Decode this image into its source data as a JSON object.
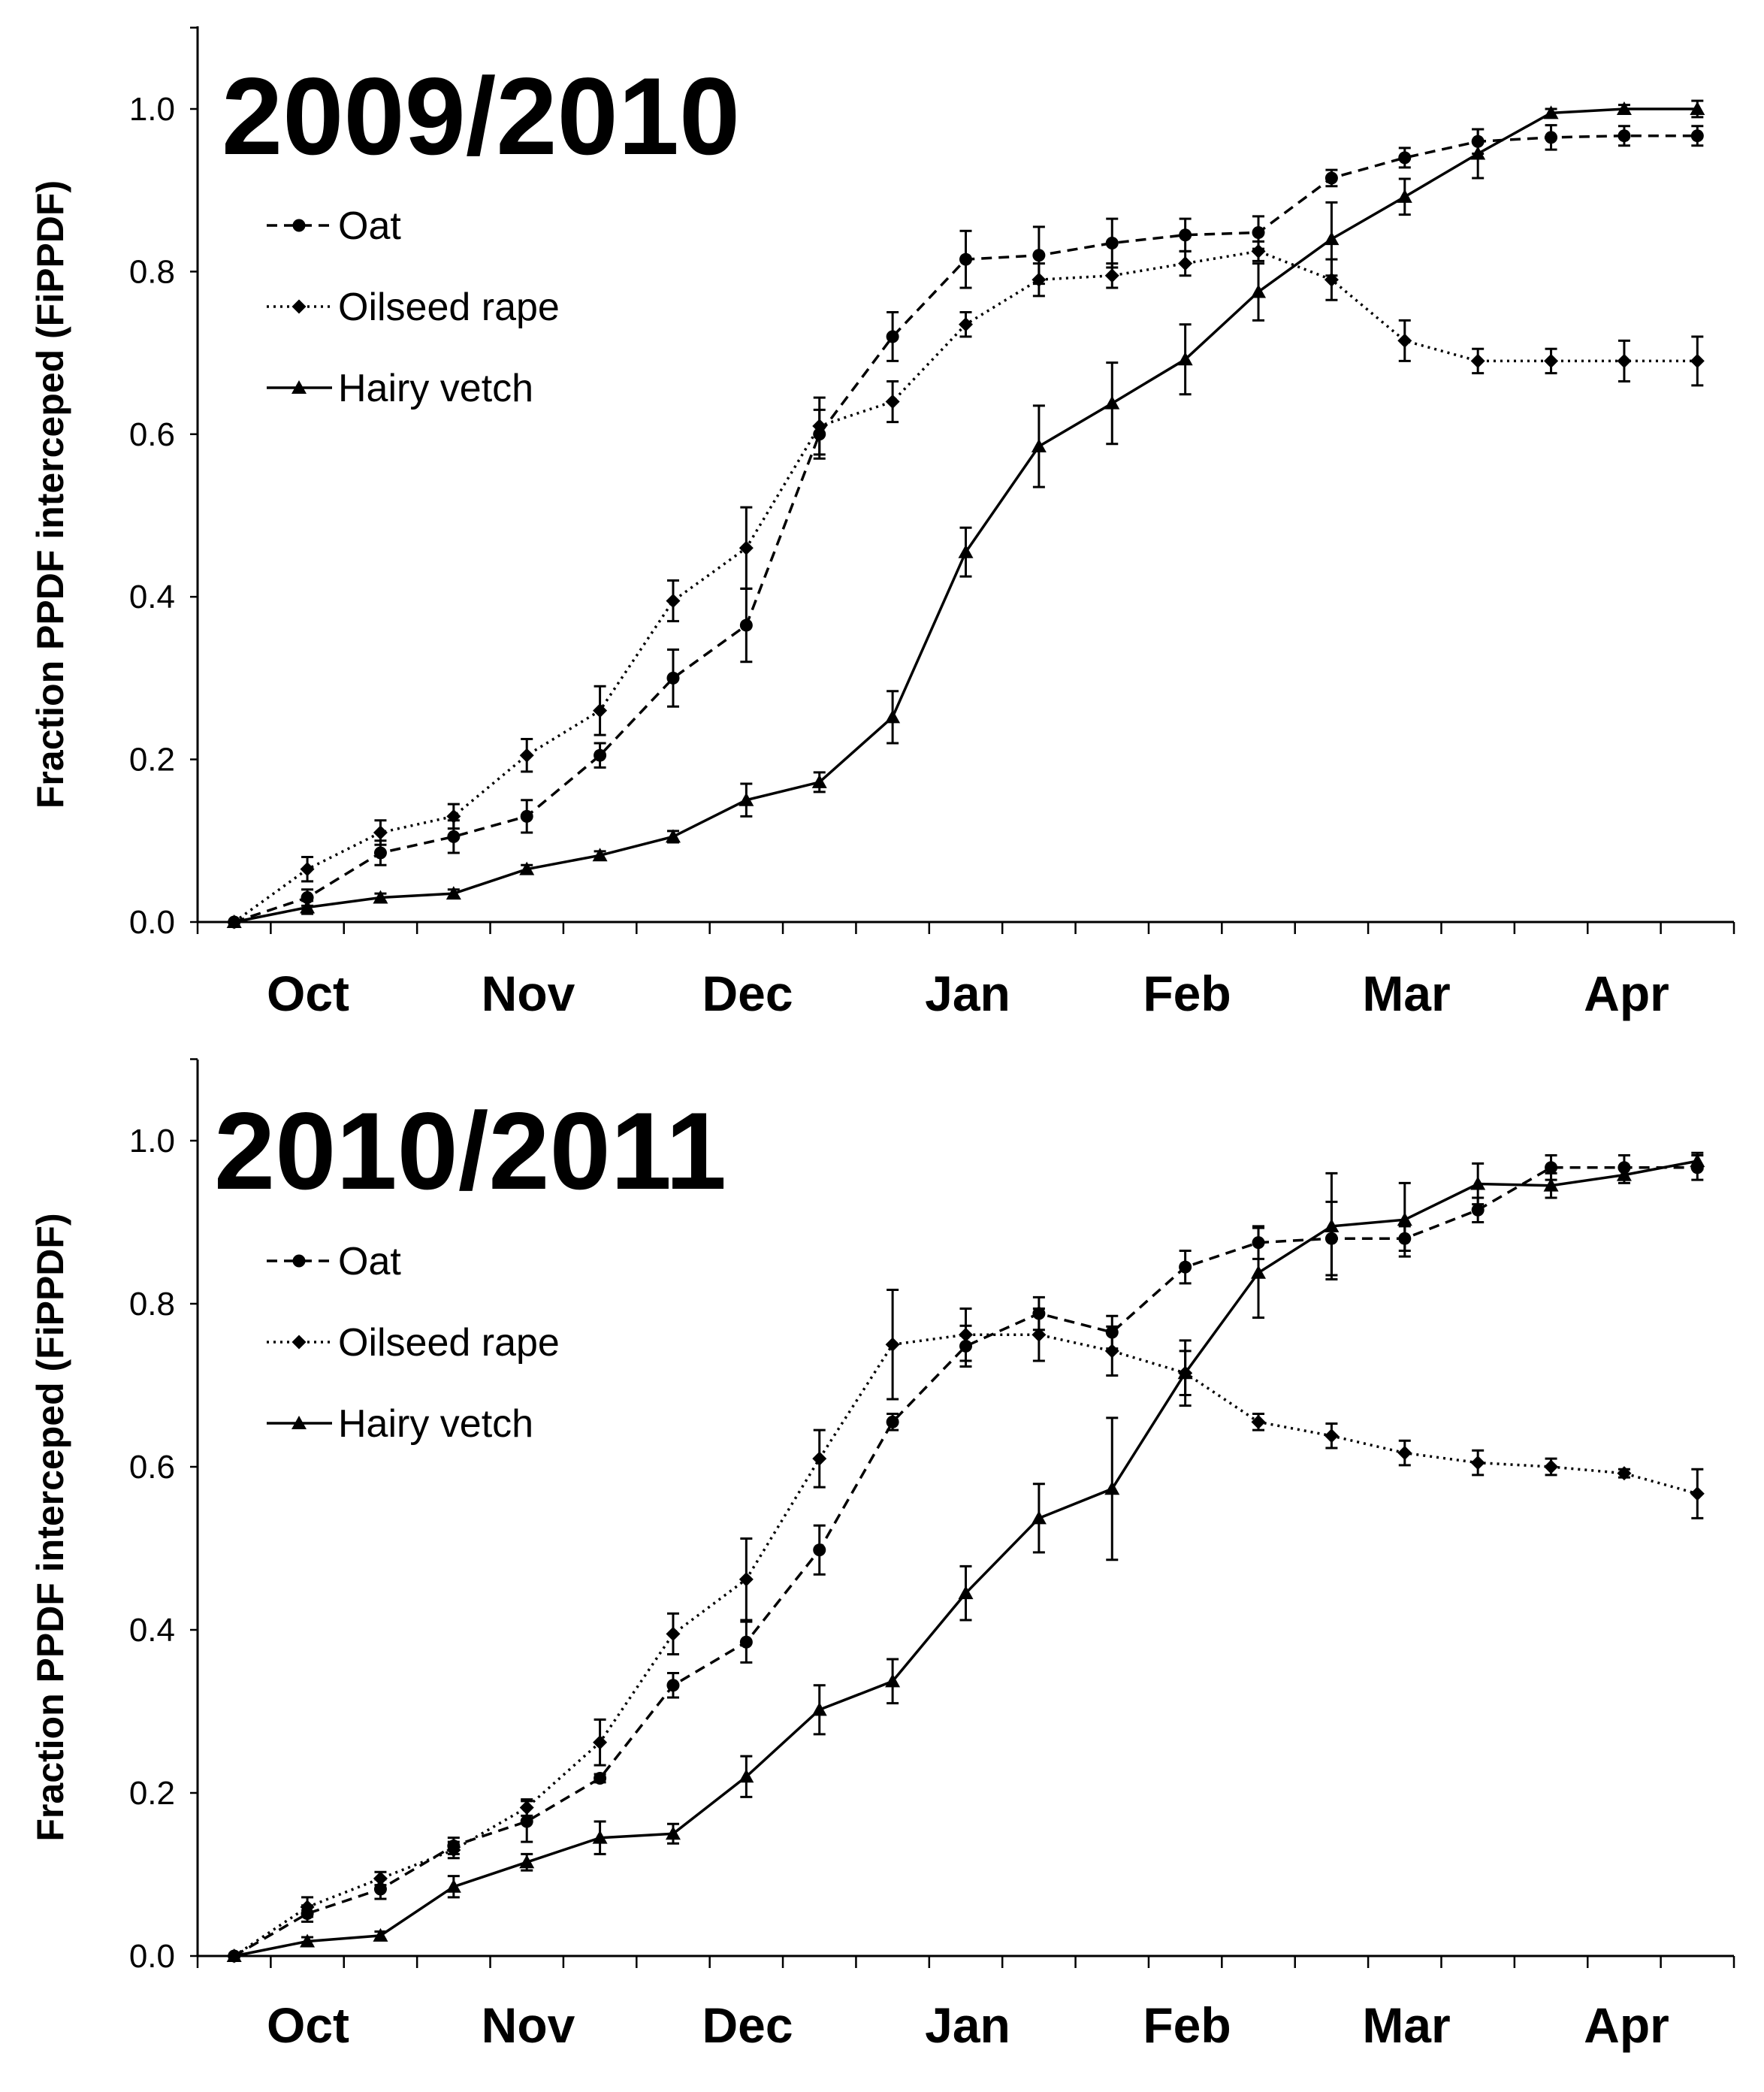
{
  "chart_data": [
    {
      "type": "line",
      "title": "2009/2010",
      "xlabel": "",
      "ylabel": "Fraction PPDF interceped (FiPPDF)",
      "ylim": [
        0,
        1.1
      ],
      "yticks": [
        "0.0",
        "0.2",
        "0.4",
        "0.6",
        "0.8",
        "1.0"
      ],
      "ytick_values": [
        0,
        0.2,
        0.4,
        0.6,
        0.8,
        1.0
      ],
      "month_labels": [
        "Oct",
        "Nov",
        "Dec",
        "Jan",
        "Feb",
        "Mar",
        "Apr"
      ],
      "x": [
        0,
        1,
        2,
        3,
        4,
        5,
        6,
        7,
        8,
        9,
        10,
        11,
        12,
        13,
        14,
        15,
        16,
        17,
        18,
        19,
        20
      ],
      "xlim": [
        -0.5,
        20.5
      ],
      "legend_position": "upper-left",
      "series": [
        {
          "name": "Oat",
          "style": "dashed",
          "marker": "circle",
          "values": [
            0.0,
            0.03,
            0.085,
            0.105,
            0.13,
            0.205,
            0.3,
            0.365,
            0.6,
            0.72,
            0.815,
            0.82,
            0.835,
            0.845,
            0.848,
            0.915,
            0.94,
            0.96,
            0.965,
            0.967,
            0.967
          ],
          "errors": [
            0.0,
            0.01,
            0.015,
            0.02,
            0.02,
            0.015,
            0.035,
            0.045,
            0.03,
            0.03,
            0.035,
            0.035,
            0.03,
            0.02,
            0.02,
            0.01,
            0.012,
            0.015,
            0.015,
            0.012,
            0.012
          ]
        },
        {
          "name": "Oilseed rape",
          "style": "dotted",
          "marker": "diamond",
          "values": [
            0.0,
            0.065,
            0.11,
            0.13,
            0.205,
            0.26,
            0.395,
            0.46,
            0.61,
            0.64,
            0.735,
            0.79,
            0.795,
            0.81,
            0.825,
            0.79,
            0.715,
            0.69,
            0.69,
            0.69,
            0.69
          ],
          "errors": [
            0.0,
            0.015,
            0.015,
            0.015,
            0.02,
            0.03,
            0.025,
            0.05,
            0.035,
            0.025,
            0.015,
            0.02,
            0.015,
            0.015,
            0.012,
            0.025,
            0.025,
            0.015,
            0.015,
            0.025,
            0.03
          ]
        },
        {
          "name": "Hairy vetch",
          "style": "solid",
          "marker": "triangle",
          "values": [
            0.0,
            0.018,
            0.03,
            0.035,
            0.065,
            0.082,
            0.105,
            0.15,
            0.172,
            0.252,
            0.455,
            0.585,
            0.638,
            0.692,
            0.775,
            0.84,
            0.892,
            0.945,
            0.995,
            1.0,
            1.0
          ],
          "errors": [
            0.0,
            0.008,
            0.005,
            0.005,
            0.005,
            0.005,
            0.007,
            0.02,
            0.012,
            0.032,
            0.03,
            0.05,
            0.05,
            0.043,
            0.035,
            0.045,
            0.022,
            0.03,
            0.005,
            0.005,
            0.01
          ]
        }
      ]
    },
    {
      "type": "line",
      "title": "2010/2011",
      "xlabel": "",
      "ylabel": "Fraction PPDF interceped (FiPPDF)",
      "ylim": [
        0,
        1.1
      ],
      "yticks": [
        "0.0",
        "0.2",
        "0.4",
        "0.6",
        "0.8",
        "1.0"
      ],
      "ytick_values": [
        0,
        0.2,
        0.4,
        0.6,
        0.8,
        1.0
      ],
      "month_labels": [
        "Oct",
        "Nov",
        "Dec",
        "Jan",
        "Feb",
        "Mar",
        "Apr"
      ],
      "x": [
        0,
        1,
        2,
        3,
        4,
        5,
        6,
        7,
        8,
        9,
        10,
        11,
        12,
        13,
        14,
        15,
        16,
        17,
        18,
        19,
        20
      ],
      "xlim": [
        -0.5,
        20.5
      ],
      "legend_position": "upper-left",
      "series": [
        {
          "name": "Oat",
          "style": "dashed",
          "marker": "circle",
          "values": [
            0.0,
            0.052,
            0.082,
            0.135,
            0.165,
            0.218,
            0.332,
            0.385,
            0.498,
            0.655,
            0.748,
            0.788,
            0.765,
            0.845,
            0.875,
            0.88,
            0.88,
            0.915,
            0.967,
            0.967,
            0.967
          ],
          "errors": [
            0.0,
            0.01,
            0.012,
            0.01,
            0.025,
            0.005,
            0.015,
            0.025,
            0.03,
            0.01,
            0.025,
            0.02,
            0.02,
            0.02,
            0.02,
            0.045,
            0.015,
            0.015,
            0.015,
            0.015,
            0.015
          ]
        },
        {
          "name": "Oilseed rape",
          "style": "dotted",
          "marker": "diamond",
          "values": [
            0.0,
            0.06,
            0.095,
            0.13,
            0.182,
            0.262,
            0.395,
            0.462,
            0.61,
            0.75,
            0.762,
            0.762,
            0.742,
            0.715,
            0.655,
            0.638,
            0.617,
            0.605,
            0.6,
            0.592,
            0.567
          ],
          "errors": [
            0.0,
            0.012,
            0.008,
            0.01,
            0.01,
            0.028,
            0.025,
            0.05,
            0.035,
            0.067,
            0.032,
            0.032,
            0.03,
            0.027,
            0.01,
            0.015,
            0.015,
            0.015,
            0.01,
            0.005,
            0.03
          ]
        },
        {
          "name": "Hairy vetch",
          "style": "solid",
          "marker": "triangle",
          "values": [
            0.0,
            0.018,
            0.025,
            0.085,
            0.115,
            0.145,
            0.15,
            0.22,
            0.302,
            0.337,
            0.445,
            0.537,
            0.573,
            0.715,
            0.838,
            0.895,
            0.903,
            0.947,
            0.945,
            0.958,
            0.975
          ],
          "errors": [
            0.0,
            0.005,
            0.005,
            0.013,
            0.01,
            0.02,
            0.012,
            0.025,
            0.03,
            0.027,
            0.033,
            0.042,
            0.087,
            0.04,
            0.055,
            0.065,
            0.045,
            0.025,
            0.015,
            0.01,
            0.01
          ]
        }
      ]
    }
  ]
}
